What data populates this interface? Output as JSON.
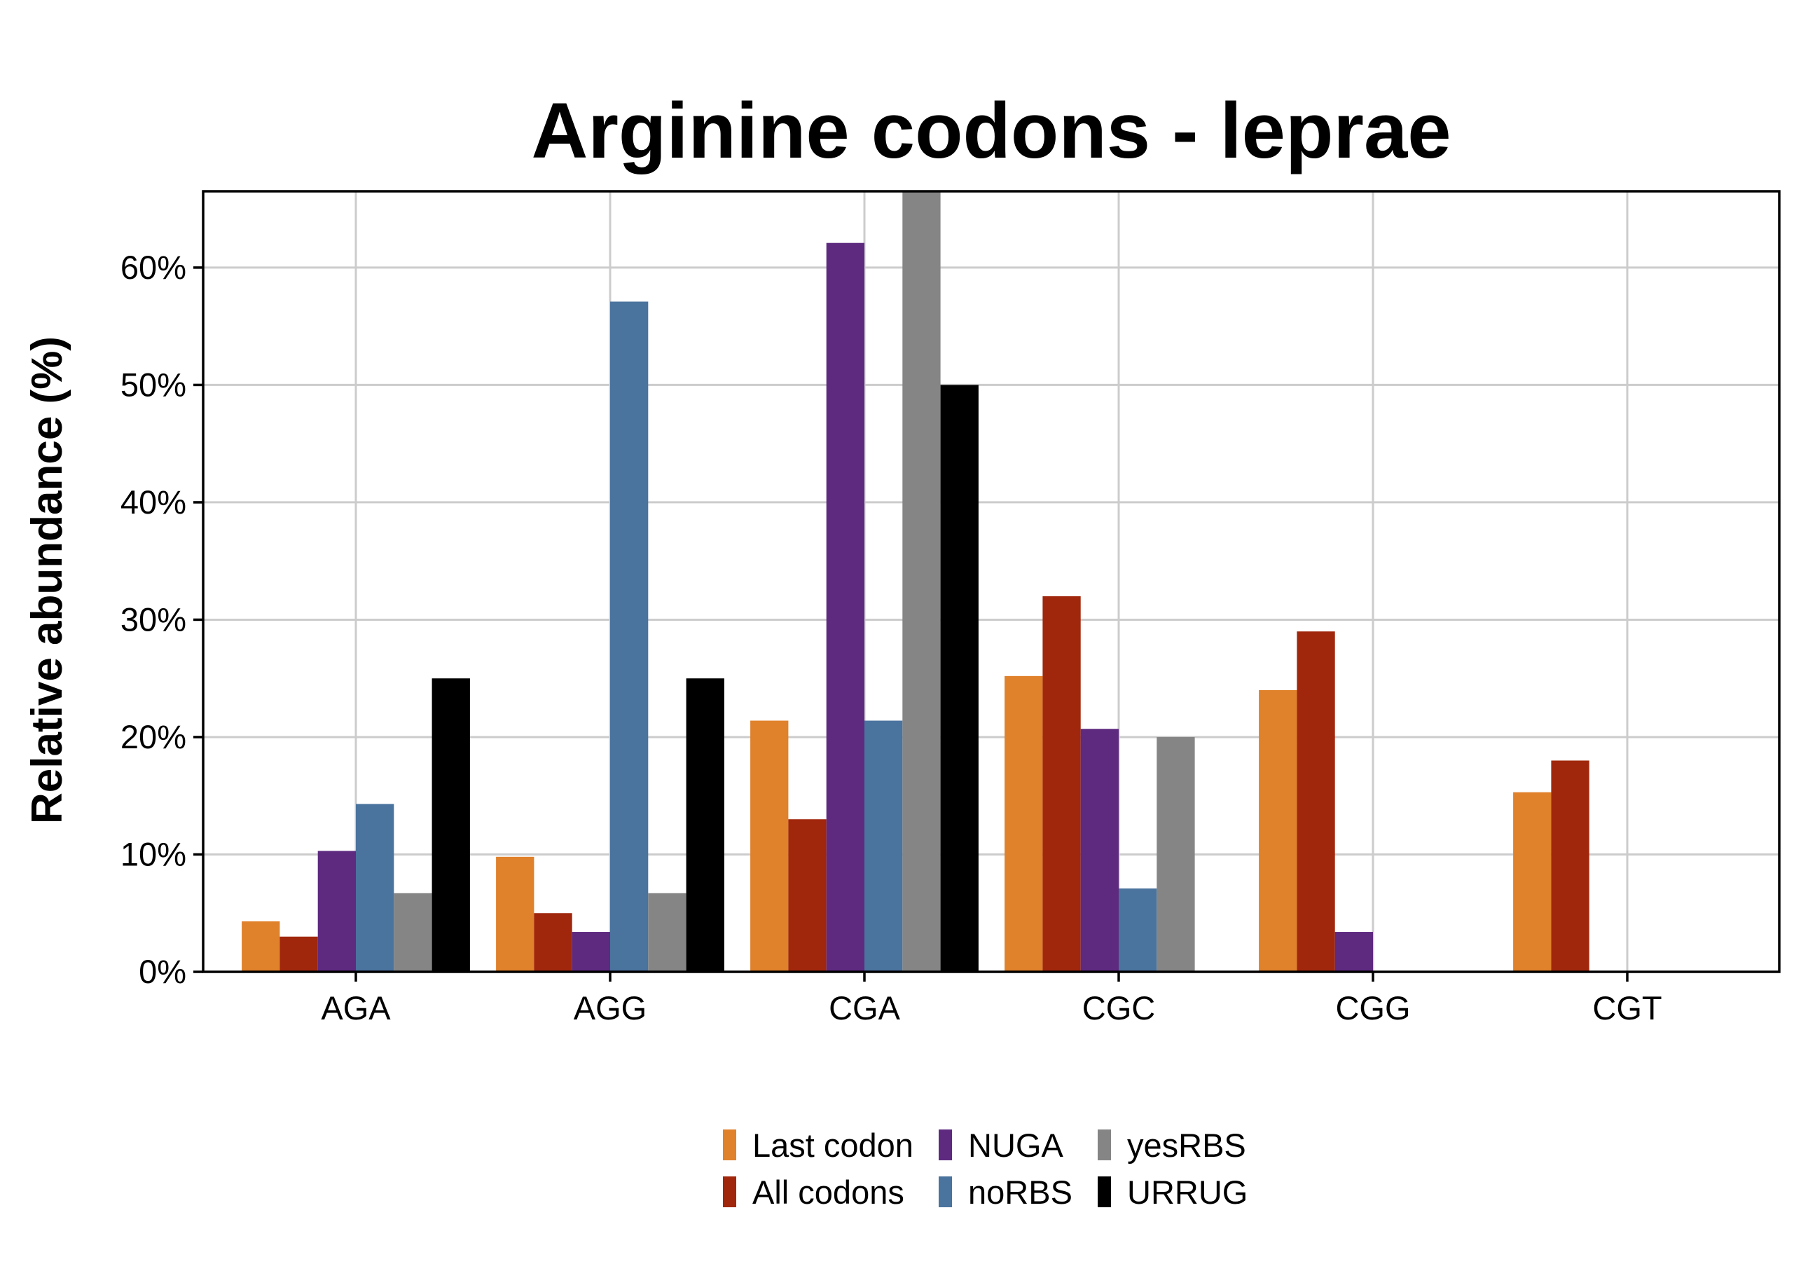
{
  "chart_data": {
    "type": "bar",
    "title": "Arginine codons - leprae",
    "xlabel": "",
    "ylabel": "Relative abundance (%)",
    "ylim": [
      0,
      66.5
    ],
    "ytick_values": [
      0,
      10,
      20,
      30,
      40,
      50,
      60
    ],
    "ytick_labels": [
      "0%",
      "10%",
      "20%",
      "30%",
      "40%",
      "50%",
      "60%"
    ],
    "categories": [
      "AGA",
      "AGG",
      "CGA",
      "CGC",
      "CGG",
      "CGT"
    ],
    "grid": true,
    "legend_position": "bottom",
    "series": [
      {
        "name": "Last codon",
        "color": "#E0812B",
        "values": [
          4.3,
          9.8,
          21.4,
          25.2,
          24.0,
          15.3
        ]
      },
      {
        "name": "All codons",
        "color": "#A0270C",
        "values": [
          3.0,
          5.0,
          13.0,
          32.0,
          29.0,
          18.0
        ]
      },
      {
        "name": "NUGA",
        "color": "#5E2A80",
        "values": [
          10.3,
          3.4,
          62.1,
          20.7,
          3.4,
          0
        ]
      },
      {
        "name": "noRBS",
        "color": "#4A739E",
        "values": [
          14.3,
          57.1,
          21.4,
          7.1,
          0,
          0
        ]
      },
      {
        "name": "yesRBS",
        "color": "#858585",
        "values": [
          6.7,
          6.7,
          66.7,
          20.0,
          0,
          0
        ]
      },
      {
        "name": "URRUG",
        "color": "#000000",
        "values": [
          25.0,
          25.0,
          50.0,
          0,
          0,
          0
        ]
      }
    ]
  }
}
